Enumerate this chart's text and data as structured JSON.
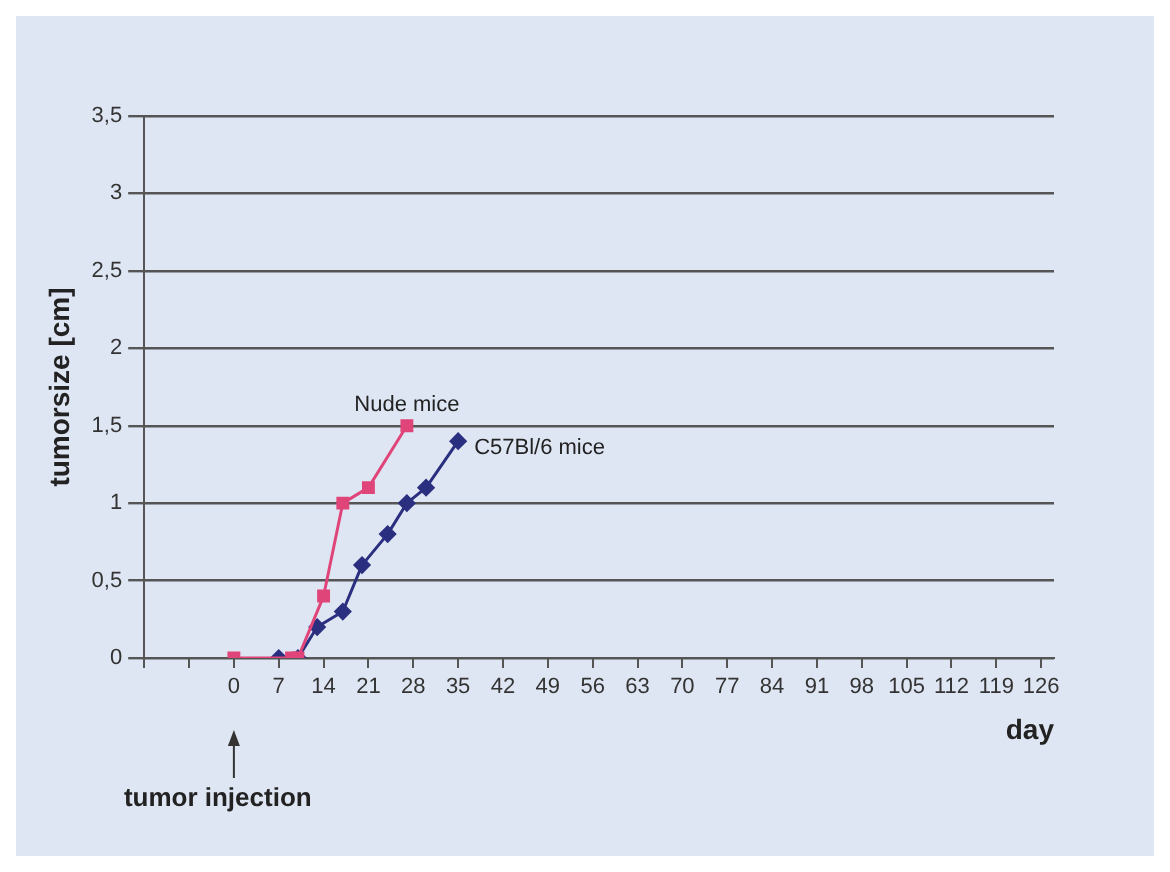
{
  "chart_data": {
    "type": "line",
    "xlabel": "day",
    "ylabel": "tumorsize [cm]",
    "xlim": [
      -14,
      128
    ],
    "xticks": [
      {
        "value": -14,
        "label": null
      },
      {
        "value": -7,
        "label": null
      },
      0,
      7,
      14,
      21,
      28,
      35,
      42,
      49,
      56,
      63,
      70,
      77,
      84,
      91,
      98,
      105,
      112,
      119,
      126
    ],
    "ylim": [
      0,
      3.5
    ],
    "yticks": [
      0,
      {
        "value": 0.5,
        "label": "0,5"
      },
      1,
      {
        "value": 1.5,
        "label": "1,5"
      },
      2,
      {
        "value": 2.5,
        "label": "2,5"
      },
      3,
      {
        "value": 3.5,
        "label": "3,5"
      }
    ],
    "grid": "y",
    "legend": false,
    "series": [
      {
        "name": "Nude mice",
        "color": "#e0457a",
        "marker": "square",
        "x": [
          0,
          9,
          10,
          14,
          17,
          21,
          27
        ],
        "values": [
          0,
          0,
          0,
          0.4,
          1,
          1.1,
          1.5
        ]
      },
      {
        "name": "C57Bl/6 mice",
        "color": "#2b2f7f",
        "marker": "diamond",
        "x": [
          7,
          10,
          13,
          17,
          20,
          24,
          27,
          30,
          35
        ],
        "values": [
          0,
          0,
          0.2,
          0.3,
          0.6,
          0.8,
          1,
          1.1,
          1.4
        ]
      }
    ],
    "annotations": [
      "tumor injection"
    ]
  }
}
